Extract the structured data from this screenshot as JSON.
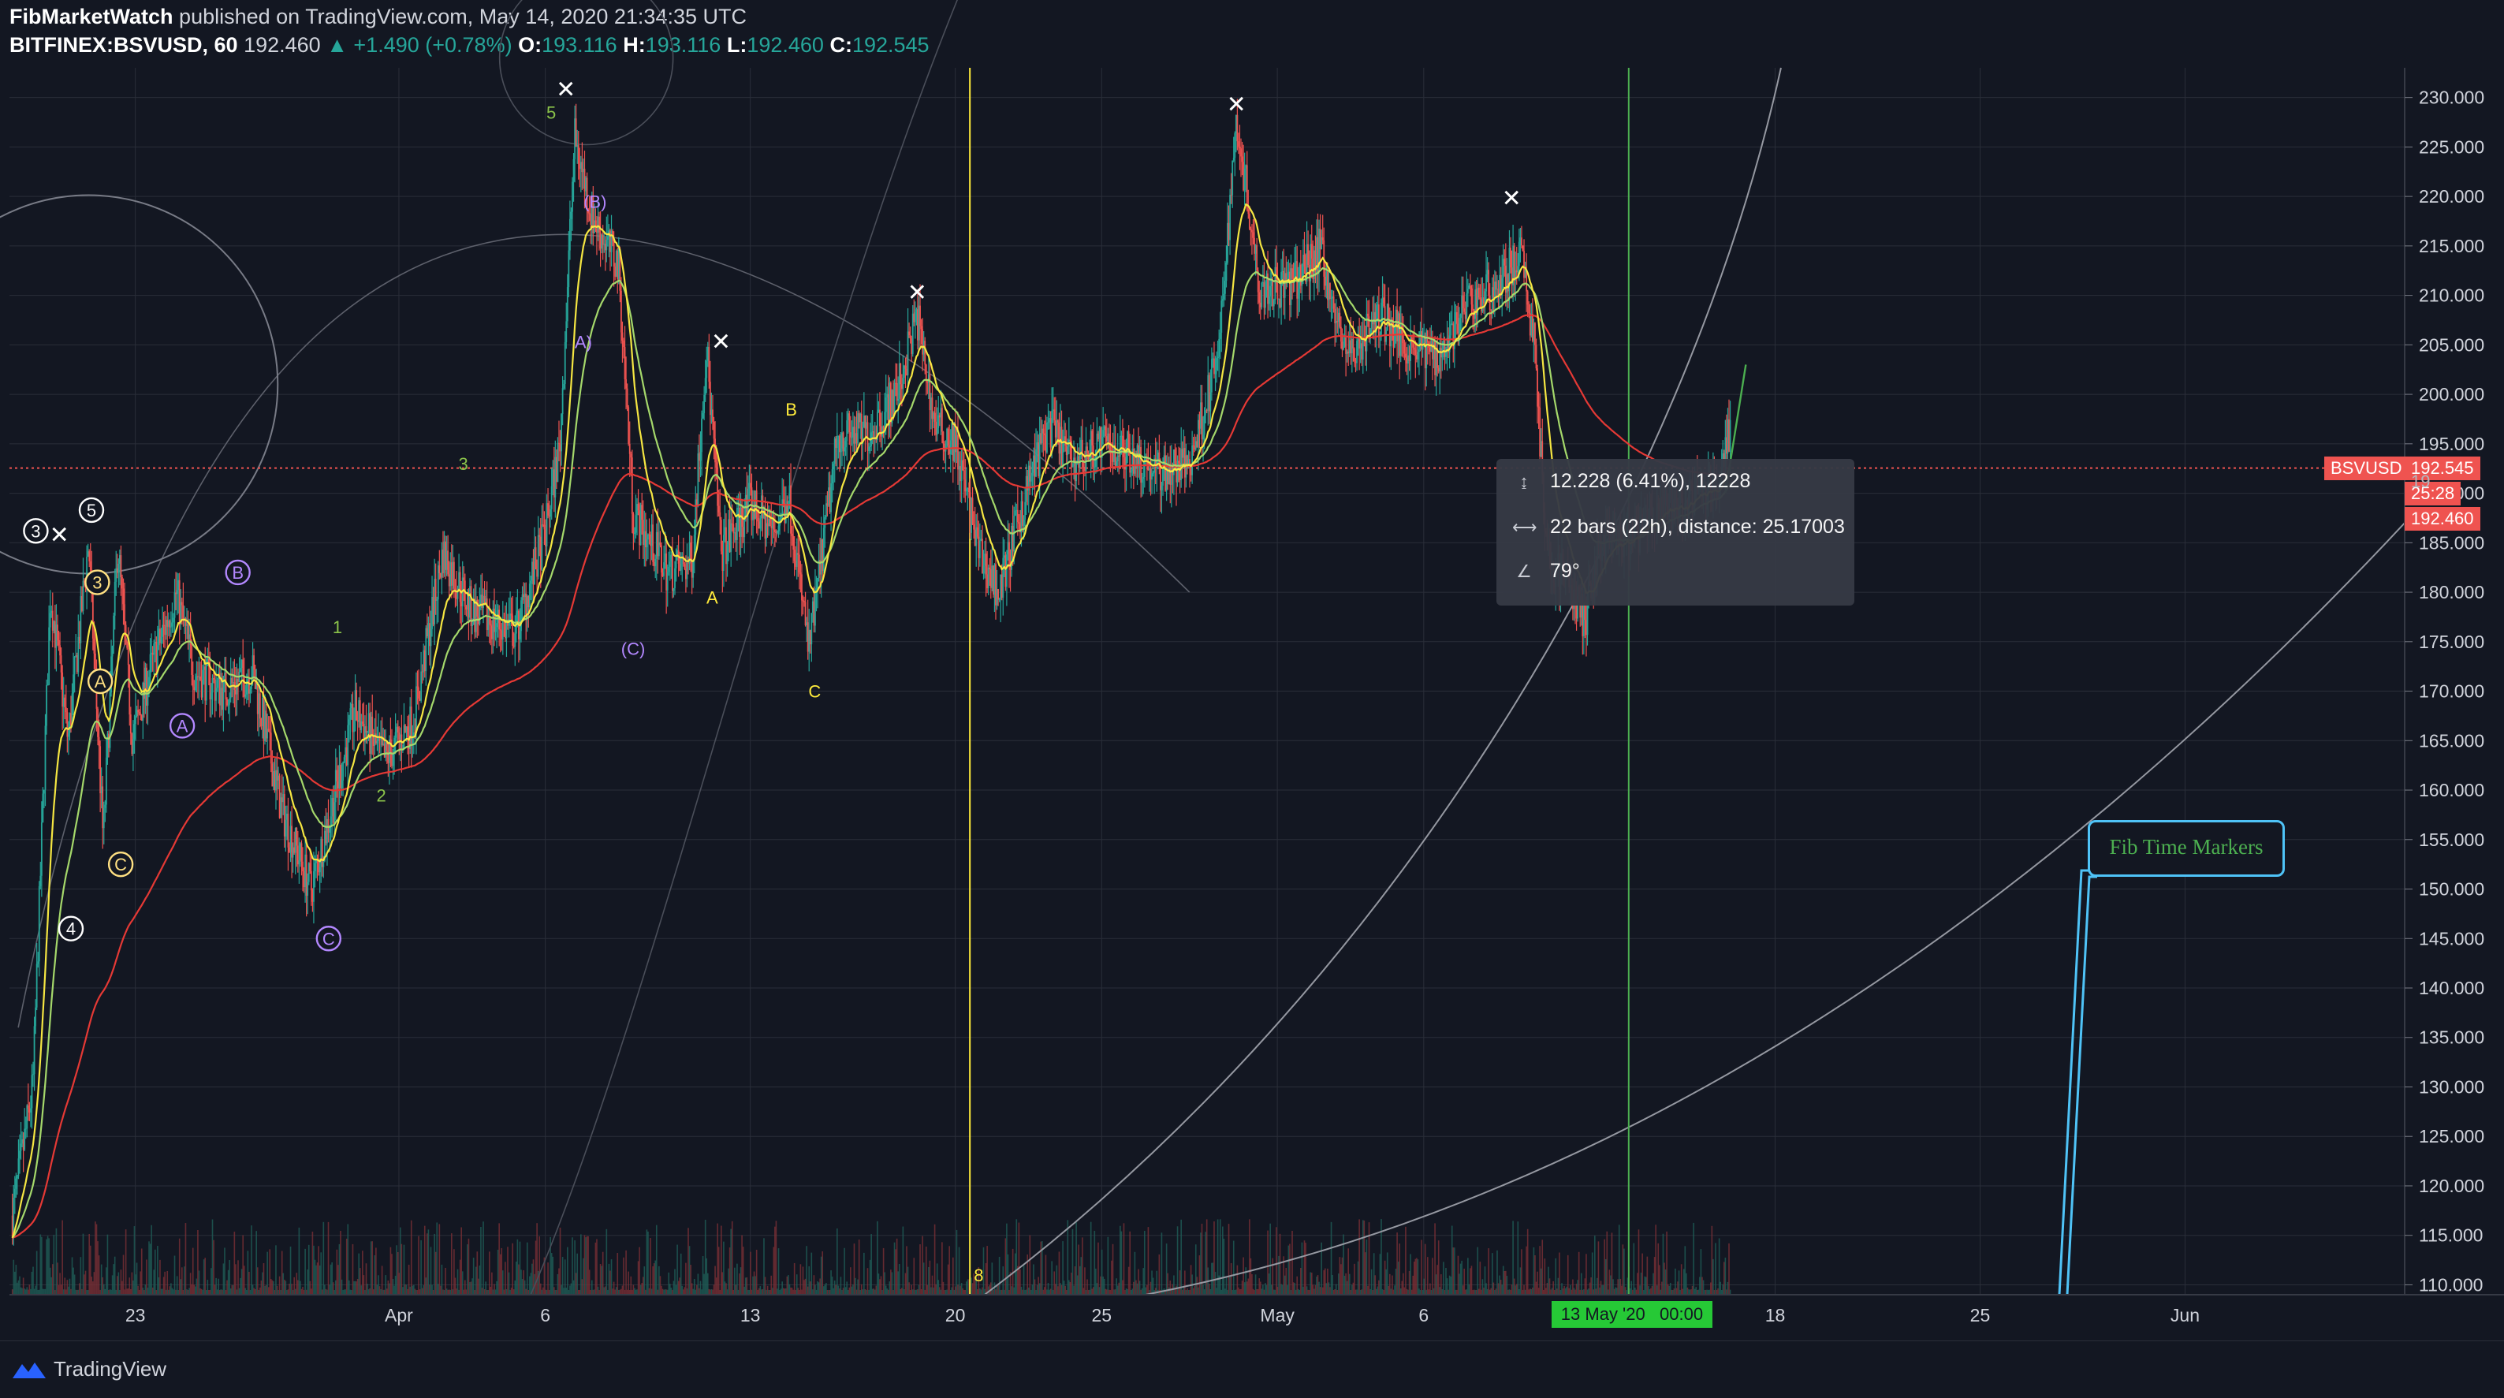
{
  "header": {
    "publisher": "FibMarketWatch",
    "published_text": "published on TradingView.com, May 14, 2020 21:34:35 UTC",
    "symbol": "BITFINEX:BSVUSD, 60",
    "last": "192.460",
    "change": "▲ +1.490 (+0.78%)",
    "o_label": "O:",
    "o_value": "193.116",
    "h_label": "H:",
    "h_value": "193.116",
    "l_label": "L:",
    "l_value": "192.460",
    "c_label": "C:",
    "c_value": "192.545"
  },
  "measure": {
    "row1": "12.228 (6.41%), 12228",
    "row2": "22 bars (22h), distance: 25.17003",
    "row3": "79°"
  },
  "annotation_label": "Fib Time Markers",
  "price_tags": {
    "symbol_label": "BSVUSD",
    "current": "192.545",
    "countdown": "25:28",
    "last": "192.460",
    "hidden_left": "19"
  },
  "time_tag": "13 May '20   00:00",
  "footer": {
    "brand": "TradingView"
  },
  "colors": {
    "background": "#131722",
    "up": "#26a69a",
    "down": "#ef5350",
    "ma_yellow": "#f5e642",
    "ma_green": "#a5d86b",
    "ma_red": "#e53935",
    "vertical_yellow": "#ffeb3b",
    "vertical_green": "#4caf50",
    "fib_box": "#4fc3f7",
    "fib_text": "#4caf50"
  },
  "chart_data": {
    "type": "candlestick",
    "y_ticks": [
      110,
      115,
      120,
      125,
      130,
      135,
      140,
      145,
      150,
      155,
      160,
      165,
      170,
      175,
      180,
      185,
      190,
      195,
      200,
      205,
      210,
      215,
      220,
      225,
      230
    ],
    "y_tick_labels": [
      "110.000",
      "115.000",
      "120.000",
      "125.000",
      "130.000",
      "135.000",
      "140.000",
      "145.000",
      "150.000",
      "155.000",
      "160.000",
      "165.000",
      "170.000",
      "175.000",
      "180.000",
      "185.000",
      "190.000",
      "195.000",
      "200.000",
      "205.000",
      "210.000",
      "215.000",
      "220.000",
      "225.000",
      "230.000"
    ],
    "ylim": [
      109,
      233
    ],
    "x_ticks": [
      {
        "label": "23",
        "day": 23
      },
      {
        "label": "Apr",
        "day": 32
      },
      {
        "label": "6",
        "day": 37
      },
      {
        "label": "13",
        "day": 44
      },
      {
        "label": "20",
        "day": 51
      },
      {
        "label": "25",
        "day": 56
      },
      {
        "label": "May",
        "day": 62
      },
      {
        "label": "6",
        "day": 67
      },
      {
        "label": "18",
        "day": 79
      },
      {
        "label": "25",
        "day": 86
      },
      {
        "label": "Jun",
        "day": 93
      }
    ],
    "xlim_days": [
      18.7,
      100.5
    ],
    "price_path": [
      [
        18.8,
        117
      ],
      [
        19.5,
        130
      ],
      [
        20.1,
        180
      ],
      [
        20.7,
        165
      ],
      [
        21.4,
        185
      ],
      [
        21.9,
        155
      ],
      [
        22.4,
        185
      ],
      [
        22.9,
        165
      ],
      [
        23.5,
        172
      ],
      [
        24.4,
        180
      ],
      [
        25.0,
        172
      ],
      [
        26.0,
        170
      ],
      [
        27.0,
        172
      ],
      [
        28.0,
        158
      ],
      [
        29.0,
        150
      ],
      [
        29.6,
        157
      ],
      [
        30.5,
        168
      ],
      [
        31.5,
        163
      ],
      [
        32.5,
        167
      ],
      [
        33.5,
        184
      ],
      [
        34.5,
        178
      ],
      [
        36.0,
        176
      ],
      [
        37.0,
        186
      ],
      [
        37.5,
        195
      ],
      [
        38.0,
        226
      ],
      [
        38.6,
        218
      ],
      [
        39.5,
        213
      ],
      [
        40.0,
        188
      ],
      [
        41.2,
        182
      ],
      [
        42.0,
        183
      ],
      [
        42.5,
        205
      ],
      [
        43.0,
        184
      ],
      [
        44.0,
        189
      ],
      [
        44.8,
        186
      ],
      [
        45.3,
        190
      ],
      [
        46.0,
        174
      ],
      [
        47.0,
        196
      ],
      [
        48.0,
        196
      ],
      [
        49.0,
        200
      ],
      [
        49.7,
        208
      ],
      [
        50.3,
        197
      ],
      [
        51.0,
        195
      ],
      [
        51.8,
        184
      ],
      [
        52.5,
        180
      ],
      [
        53.5,
        191
      ],
      [
        54.2,
        197
      ],
      [
        55.0,
        193
      ],
      [
        56.0,
        195
      ],
      [
        57.0,
        194
      ],
      [
        58.0,
        192
      ],
      [
        59.0,
        193
      ],
      [
        60.0,
        204
      ],
      [
        60.6,
        228
      ],
      [
        61.4,
        211
      ],
      [
        62.5,
        211
      ],
      [
        63.5,
        215
      ],
      [
        64.0,
        207
      ],
      [
        64.5,
        204
      ],
      [
        65.5,
        208
      ],
      [
        66.5,
        205
      ],
      [
        67.5,
        204
      ],
      [
        68.5,
        209
      ],
      [
        69.5,
        211
      ],
      [
        70.3,
        214
      ],
      [
        70.8,
        205
      ],
      [
        71.2,
        183
      ],
      [
        71.8,
        182
      ],
      [
        72.5,
        177
      ],
      [
        73.0,
        185
      ],
      [
        74.0,
        185
      ],
      [
        75.0,
        188
      ],
      [
        76.0,
        189
      ],
      [
        77.0,
        191
      ],
      [
        78.0,
        203
      ]
    ],
    "markers_x": [
      {
        "day": 20.4,
        "price": 185,
        "label": ""
      },
      {
        "day": 37.7,
        "price": 230,
        "label": ""
      },
      {
        "day": 43.0,
        "price": 204.5,
        "label": ""
      },
      {
        "day": 49.7,
        "price": 209.5,
        "label": ""
      },
      {
        "day": 60.6,
        "price": 228.5,
        "label": ""
      },
      {
        "day": 70.0,
        "price": 219,
        "label": ""
      }
    ],
    "wave_labels": [
      {
        "day": 19.6,
        "price": 186.2,
        "text": "3",
        "style": "circle-white"
      },
      {
        "day": 21.5,
        "price": 188.3,
        "text": "5",
        "style": "circle-white"
      },
      {
        "day": 21.7,
        "price": 181.0,
        "text": "3",
        "style": "circle-yellow"
      },
      {
        "day": 21.8,
        "price": 171.0,
        "text": "A",
        "style": "circle-yellow"
      },
      {
        "day": 22.5,
        "price": 152.5,
        "text": "C",
        "style": "circle-yellow"
      },
      {
        "day": 20.8,
        "price": 146.0,
        "text": "4",
        "style": "circle-white"
      },
      {
        "day": 26.5,
        "price": 182.0,
        "text": "B",
        "style": "circle-purple"
      },
      {
        "day": 24.6,
        "price": 166.5,
        "text": "A",
        "style": "circle-purple"
      },
      {
        "day": 29.6,
        "price": 145.0,
        "text": "C",
        "style": "circle-purple"
      },
      {
        "day": 29.9,
        "price": 176.5,
        "text": "1",
        "style": "plain-green"
      },
      {
        "day": 31.4,
        "price": 159.5,
        "text": "2",
        "style": "plain-green"
      },
      {
        "day": 34.2,
        "price": 193.0,
        "text": "3",
        "style": "plain-green"
      },
      {
        "day": 37.2,
        "price": 228.5,
        "text": "5",
        "style": "plain-green"
      },
      {
        "day": 38.7,
        "price": 219.5,
        "text": "(B)",
        "style": "plain-purple"
      },
      {
        "day": 38.3,
        "price": 205.3,
        "text": "A)",
        "style": "plain-purple"
      },
      {
        "day": 40.0,
        "price": 174.3,
        "text": "(C)",
        "style": "plain-purple"
      },
      {
        "day": 42.7,
        "price": 179.5,
        "text": "A",
        "style": "plain-yellow"
      },
      {
        "day": 45.4,
        "price": 198.5,
        "text": "B",
        "style": "plain-yellow"
      },
      {
        "day": 46.2,
        "price": 170.0,
        "text": "C",
        "style": "plain-yellow"
      },
      {
        "day": 51.8,
        "price": 111.0,
        "text": "8",
        "style": "plain-yellow"
      }
    ],
    "current_price": 192.545,
    "vertical_lines": [
      {
        "day": 51.5,
        "color": "yellow"
      },
      {
        "day": 74.0,
        "color": "green"
      }
    ]
  }
}
